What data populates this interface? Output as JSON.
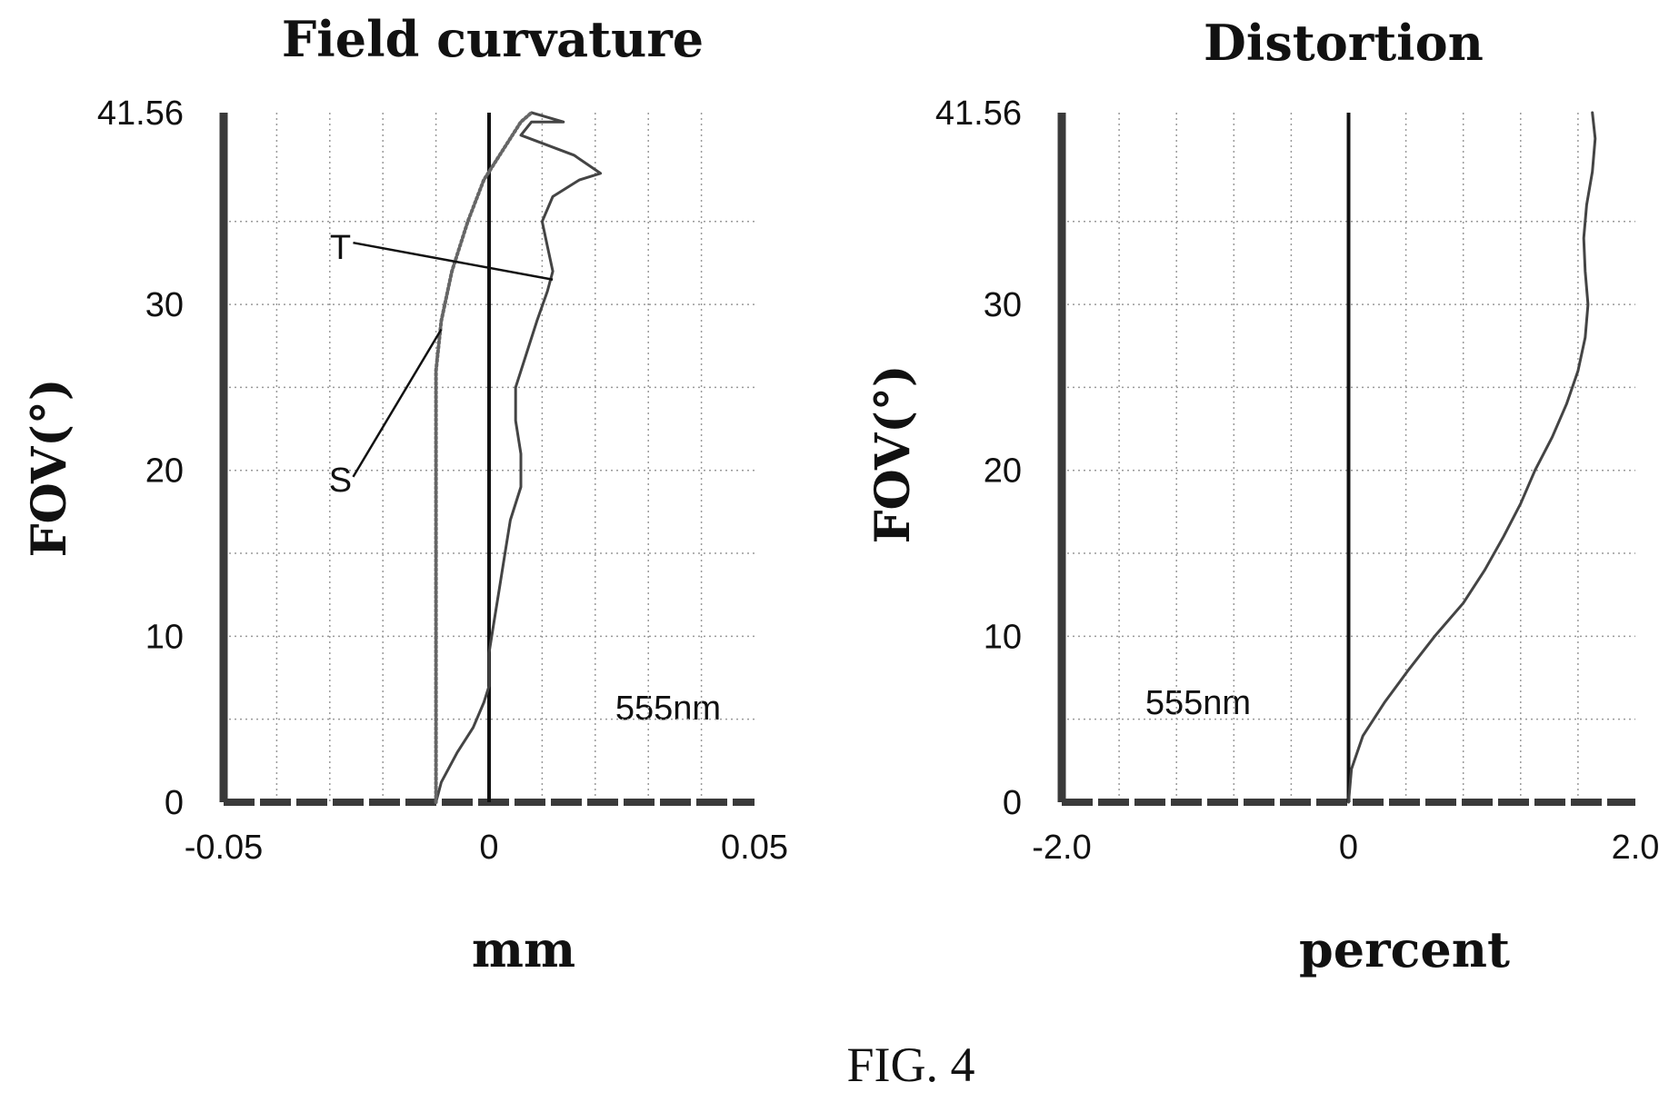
{
  "figure_caption": "FIG. 4",
  "chart_data": [
    {
      "type": "line",
      "title": "Field curvature",
      "xlabel": "mm",
      "ylabel": "FOV(°)",
      "xlim": [
        -0.05,
        0.05
      ],
      "ylim": [
        0,
        41.56
      ],
      "x_tick_labels": [
        "-0.05",
        "0",
        "0.05"
      ],
      "x_tick_values": [
        -0.05,
        0,
        0.05
      ],
      "y_tick_labels": [
        "0",
        "10",
        "20",
        "30",
        "41.56"
      ],
      "y_tick_values": [
        0,
        10,
        20,
        30,
        41.56
      ],
      "x_grid": [
        -0.04,
        -0.03,
        -0.02,
        -0.01,
        0.01,
        0.02,
        0.03,
        0.04
      ],
      "y_grid": [
        5,
        10,
        15,
        20,
        25,
        30,
        35
      ],
      "grid": true,
      "wavelength_label": "555nm",
      "series": [
        {
          "name": "T",
          "style": "solid",
          "points": [
            [
              -0.01,
              0
            ],
            [
              -0.009,
              1.2
            ],
            [
              -0.006,
              3
            ],
            [
              -0.003,
              4.5
            ],
            [
              -0.001,
              6
            ],
            [
              0,
              7
            ],
            [
              0,
              9
            ],
            [
              0.001,
              11
            ],
            [
              0.002,
              13
            ],
            [
              0.003,
              15
            ],
            [
              0.004,
              17
            ],
            [
              0.006,
              19
            ],
            [
              0.006,
              21
            ],
            [
              0.005,
              23
            ],
            [
              0.005,
              25
            ],
            [
              0.007,
              27
            ],
            [
              0.009,
              29
            ],
            [
              0.011,
              30.8
            ],
            [
              0.012,
              32
            ],
            [
              0.011,
              33.5
            ],
            [
              0.01,
              35
            ],
            [
              0.012,
              36.5
            ],
            [
              0.017,
              37.5
            ],
            [
              0.021,
              37.9
            ],
            [
              0.016,
              39
            ],
            [
              0.006,
              40.2
            ],
            [
              0.008,
              41
            ],
            [
              0.014,
              41
            ],
            [
              0.008,
              41.56
            ]
          ]
        },
        {
          "name": "S",
          "style": "dotted",
          "points": [
            [
              -0.01,
              0
            ],
            [
              -0.01,
              2
            ],
            [
              -0.01,
              5
            ],
            [
              -0.01,
              8
            ],
            [
              -0.01,
              11
            ],
            [
              -0.01,
              14
            ],
            [
              -0.01,
              17
            ],
            [
              -0.01,
              20
            ],
            [
              -0.01,
              23
            ],
            [
              -0.01,
              26
            ],
            [
              -0.009,
              29
            ],
            [
              -0.007,
              32
            ],
            [
              -0.004,
              35
            ],
            [
              -0.001,
              37.5
            ],
            [
              0.003,
              39.5
            ],
            [
              0.006,
              41
            ],
            [
              0.008,
              41.56
            ]
          ]
        }
      ],
      "annotations": [
        {
          "text": "T",
          "label_x": -0.028,
          "label_y": 33.5,
          "target_x": 0.012,
          "target_y": 31.5
        },
        {
          "text": "S",
          "label_x": -0.028,
          "label_y": 19.5,
          "target_x": -0.009,
          "target_y": 28.5
        }
      ]
    },
    {
      "type": "line",
      "title": "Distortion",
      "xlabel": "percent",
      "ylabel": "FOV(°)",
      "xlim": [
        -2.0,
        2.0
      ],
      "ylim": [
        0,
        41.56
      ],
      "x_tick_labels": [
        "-2.0",
        "0",
        "2.0"
      ],
      "x_tick_values": [
        -2.0,
        0,
        2.0
      ],
      "y_tick_labels": [
        "0",
        "10",
        "20",
        "30",
        "41.56"
      ],
      "y_tick_values": [
        0,
        10,
        20,
        30,
        41.56
      ],
      "x_grid": [
        -1.6,
        -1.2,
        -0.8,
        -0.4,
        0.4,
        0.8,
        1.2,
        1.6
      ],
      "y_grid": [
        5,
        10,
        15,
        20,
        25,
        30,
        35
      ],
      "grid": true,
      "wavelength_label": "555nm",
      "series": [
        {
          "name": "",
          "style": "solid",
          "points": [
            [
              0,
              0
            ],
            [
              0.02,
              2
            ],
            [
              0.1,
              4
            ],
            [
              0.25,
              6
            ],
            [
              0.42,
              8
            ],
            [
              0.6,
              10
            ],
            [
              0.8,
              12
            ],
            [
              0.95,
              14
            ],
            [
              1.08,
              16
            ],
            [
              1.2,
              18
            ],
            [
              1.3,
              20
            ],
            [
              1.42,
              22
            ],
            [
              1.52,
              24
            ],
            [
              1.6,
              26
            ],
            [
              1.65,
              28
            ],
            [
              1.67,
              30
            ],
            [
              1.65,
              32
            ],
            [
              1.64,
              34
            ],
            [
              1.66,
              36
            ],
            [
              1.7,
              38
            ],
            [
              1.72,
              40
            ],
            [
              1.7,
              41.56
            ]
          ]
        }
      ],
      "annotations": []
    }
  ]
}
